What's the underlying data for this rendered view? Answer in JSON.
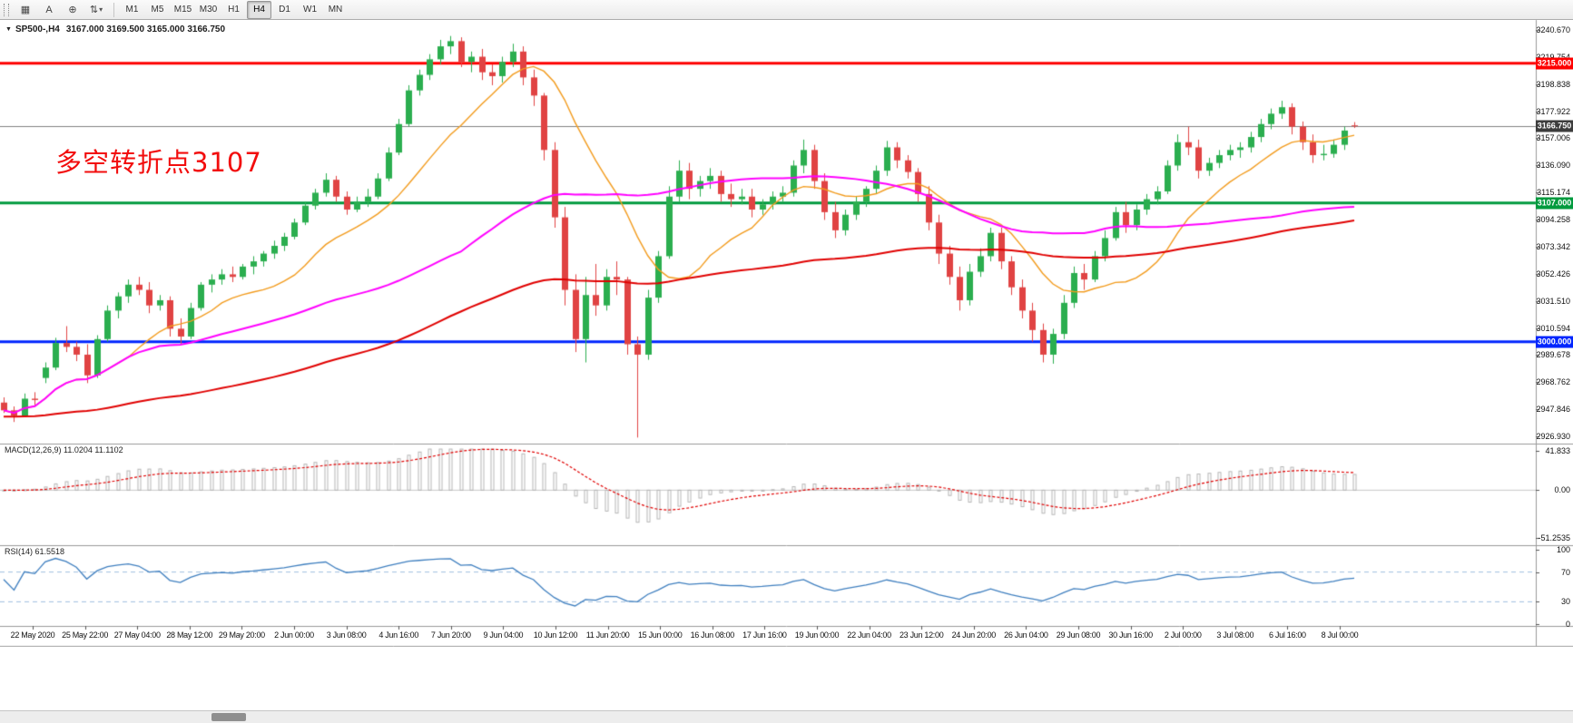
{
  "toolbar": {
    "tools": [
      {
        "name": "chart-mode",
        "glyph": "▦"
      },
      {
        "name": "text-tool",
        "glyph": "A"
      },
      {
        "name": "crosshair-tool",
        "glyph": "⊕"
      },
      {
        "name": "draw-tools",
        "glyph": "⇅",
        "caret": "▾"
      }
    ],
    "timeframes": [
      "M1",
      "M5",
      "M15",
      "M30",
      "H1",
      "H4",
      "D1",
      "W1",
      "MN"
    ],
    "active_timeframe": "H4"
  },
  "chart_header": {
    "collapse_icon": "▼",
    "symbol_period": "SP500-,H4",
    "ohlc_text": "3167.000 3169.500 3165.000 3166.750"
  },
  "annotation": {
    "text": "多空转折点3107",
    "color": "#f20d0d"
  },
  "chart_data": {
    "type": "candlestick",
    "symbol_timeframe": "SP500-,H4",
    "y_axis_labels": [
      "3240.670",
      "3219.754",
      "3198.838",
      "3177.922",
      "3157.006",
      "3136.090",
      "3115.174",
      "3094.258",
      "3073.342",
      "3052.426",
      "3031.510",
      "3010.594",
      "2989.678",
      "2968.762",
      "2947.846",
      "2926.930"
    ],
    "x_axis_labels": [
      "22 May 2020",
      "25 May 22:00",
      "27 May 04:00",
      "28 May 12:00",
      "29 May 20:00",
      "2 Jun 00:00",
      "3 Jun 08:00",
      "4 Jun 16:00",
      "7 Jun 20:00",
      "9 Jun 04:00",
      "10 Jun 12:00",
      "11 Jun 20:00",
      "15 Jun 00:00",
      "16 Jun 08:00",
      "17 Jun 16:00",
      "19 Jun 00:00",
      "22 Jun 04:00",
      "23 Jun 12:00",
      "24 Jun 20:00",
      "26 Jun 04:00",
      "29 Jun 08:00",
      "30 Jun 16:00",
      "2 Jul 00:00",
      "3 Jul 08:00",
      "6 Jul 16:00",
      "8 Jul 00:00"
    ],
    "levels": [
      {
        "price": 3215.0,
        "label": "3215.000",
        "color": "#fe0000"
      },
      {
        "price": 3107.0,
        "label": "3107.000",
        "color": "#009a3e"
      },
      {
        "price": 3000.0,
        "label": "3000.000",
        "color": "#0026fe"
      }
    ],
    "current_price": {
      "price": 3166.75,
      "label": "3166.750",
      "line_color": "#808080",
      "badge_color": "#3d3d3d"
    },
    "candle_up_color": "#2bae4f",
    "candle_down_color": "#e04343",
    "moving_averages": [
      {
        "type": "sma",
        "period": 13,
        "color": "#f29b1d"
      },
      {
        "type": "sma",
        "period": 45,
        "color": "#ff00ff"
      },
      {
        "type": "ema",
        "period": 110,
        "seed": 2942,
        "color": "#e00000"
      }
    ],
    "candles": [
      [
        2953,
        2957,
        2945,
        2947
      ],
      [
        2947,
        2950,
        2938,
        2943
      ],
      [
        2943,
        2960,
        2942,
        2956
      ],
      [
        2956,
        2961,
        2950,
        2955
      ],
      [
        2972,
        2984,
        2968,
        2980
      ],
      [
        2980,
        3003,
        2978,
        2999
      ],
      [
        2999,
        3012,
        2992,
        2996
      ],
      [
        2996,
        3000,
        2985,
        2990
      ],
      [
        2990,
        2998,
        2968,
        2974
      ],
      [
        2974,
        3005,
        2972,
        3002
      ],
      [
        3002,
        3028,
        3000,
        3024
      ],
      [
        3024,
        3038,
        3018,
        3035
      ],
      [
        3035,
        3048,
        3030,
        3044
      ],
      [
        3044,
        3050,
        3036,
        3040
      ],
      [
        3040,
        3046,
        3022,
        3028
      ],
      [
        3028,
        3036,
        3024,
        3032
      ],
      [
        3032,
        3035,
        3004,
        3010
      ],
      [
        3010,
        3018,
        2998,
        3004
      ],
      [
        3004,
        3030,
        3002,
        3026
      ],
      [
        3026,
        3046,
        3024,
        3044
      ],
      [
        3044,
        3052,
        3038,
        3048
      ],
      [
        3048,
        3056,
        3044,
        3052
      ],
      [
        3052,
        3058,
        3046,
        3050
      ],
      [
        3050,
        3060,
        3048,
        3058
      ],
      [
        3058,
        3066,
        3052,
        3062
      ],
      [
        3062,
        3070,
        3058,
        3068
      ],
      [
        3068,
        3078,
        3064,
        3074
      ],
      [
        3074,
        3084,
        3070,
        3081
      ],
      [
        3081,
        3095,
        3079,
        3092
      ],
      [
        3092,
        3108,
        3090,
        3105
      ],
      [
        3105,
        3118,
        3102,
        3115
      ],
      [
        3115,
        3130,
        3112,
        3125
      ],
      [
        3125,
        3128,
        3108,
        3112
      ],
      [
        3112,
        3116,
        3098,
        3102
      ],
      [
        3102,
        3112,
        3100,
        3108
      ],
      [
        3108,
        3118,
        3104,
        3112
      ],
      [
        3112,
        3130,
        3110,
        3126
      ],
      [
        3126,
        3150,
        3124,
        3146
      ],
      [
        3146,
        3172,
        3144,
        3168
      ],
      [
        3168,
        3198,
        3166,
        3194
      ],
      [
        3194,
        3210,
        3190,
        3206
      ],
      [
        3206,
        3222,
        3202,
        3218
      ],
      [
        3218,
        3233,
        3214,
        3228
      ],
      [
        3228,
        3236,
        3222,
        3232
      ],
      [
        3232,
        3235,
        3212,
        3216
      ],
      [
        3216,
        3224,
        3208,
        3220
      ],
      [
        3220,
        3226,
        3202,
        3208
      ],
      [
        3208,
        3214,
        3198,
        3205
      ],
      [
        3205,
        3220,
        3200,
        3216
      ],
      [
        3216,
        3230,
        3212,
        3224
      ],
      [
        3224,
        3228,
        3198,
        3204
      ],
      [
        3204,
        3210,
        3182,
        3190
      ],
      [
        3190,
        3192,
        3140,
        3148
      ],
      [
        3148,
        3154,
        3088,
        3096
      ],
      [
        3096,
        3104,
        3028,
        3040
      ],
      [
        3040,
        3052,
        2992,
        3002
      ],
      [
        3002,
        3050,
        2984,
        3036
      ],
      [
        3036,
        3060,
        3020,
        3028
      ],
      [
        3028,
        3056,
        3024,
        3050
      ],
      [
        3050,
        3062,
        3036,
        3048
      ],
      [
        3048,
        3050,
        2990,
        2998
      ],
      [
        2998,
        3004,
        2926,
        2990
      ],
      [
        2990,
        3040,
        2986,
        3034
      ],
      [
        3034,
        3070,
        3030,
        3066
      ],
      [
        3066,
        3120,
        3064,
        3112
      ],
      [
        3112,
        3140,
        3108,
        3132
      ],
      [
        3132,
        3138,
        3110,
        3118
      ],
      [
        3118,
        3128,
        3112,
        3124
      ],
      [
        3124,
        3134,
        3118,
        3128
      ],
      [
        3128,
        3132,
        3108,
        3114
      ],
      [
        3114,
        3122,
        3104,
        3110
      ],
      [
        3110,
        3118,
        3106,
        3112
      ],
      [
        3112,
        3118,
        3096,
        3102
      ],
      [
        3102,
        3110,
        3098,
        3106
      ],
      [
        3106,
        3116,
        3102,
        3112
      ],
      [
        3112,
        3120,
        3108,
        3115
      ],
      [
        3115,
        3140,
        3112,
        3136
      ],
      [
        3136,
        3156,
        3130,
        3148
      ],
      [
        3148,
        3152,
        3118,
        3124
      ],
      [
        3124,
        3130,
        3094,
        3100
      ],
      [
        3100,
        3108,
        3080,
        3086
      ],
      [
        3086,
        3102,
        3082,
        3098
      ],
      [
        3098,
        3112,
        3094,
        3108
      ],
      [
        3108,
        3120,
        3104,
        3118
      ],
      [
        3118,
        3136,
        3114,
        3132
      ],
      [
        3132,
        3155,
        3128,
        3150
      ],
      [
        3150,
        3154,
        3134,
        3140
      ],
      [
        3140,
        3144,
        3126,
        3131
      ],
      [
        3131,
        3134,
        3108,
        3114
      ],
      [
        3114,
        3120,
        3086,
        3092
      ],
      [
        3092,
        3098,
        3060,
        3068
      ],
      [
        3068,
        3074,
        3044,
        3050
      ],
      [
        3050,
        3058,
        3024,
        3032
      ],
      [
        3032,
        3060,
        3028,
        3054
      ],
      [
        3054,
        3072,
        3050,
        3066
      ],
      [
        3066,
        3088,
        3062,
        3084
      ],
      [
        3084,
        3088,
        3056,
        3062
      ],
      [
        3062,
        3066,
        3036,
        3042
      ],
      [
        3042,
        3048,
        3018,
        3024
      ],
      [
        3024,
        3030,
        3000,
        3009
      ],
      [
        3009,
        3014,
        2984,
        2990
      ],
      [
        2990,
        3010,
        2983,
        3006
      ],
      [
        3006,
        3036,
        3002,
        3030
      ],
      [
        3030,
        3058,
        3026,
        3053
      ],
      [
        3053,
        3060,
        3040,
        3048
      ],
      [
        3048,
        3070,
        3046,
        3066
      ],
      [
        3066,
        3086,
        3062,
        3080
      ],
      [
        3080,
        3104,
        3078,
        3100
      ],
      [
        3100,
        3108,
        3084,
        3090
      ],
      [
        3090,
        3106,
        3086,
        3102
      ],
      [
        3102,
        3114,
        3098,
        3110
      ],
      [
        3110,
        3120,
        3106,
        3116
      ],
      [
        3116,
        3140,
        3114,
        3136
      ],
      [
        3136,
        3160,
        3132,
        3154
      ],
      [
        3154,
        3166,
        3144,
        3150
      ],
      [
        3150,
        3156,
        3126,
        3132
      ],
      [
        3132,
        3142,
        3128,
        3138
      ],
      [
        3138,
        3148,
        3134,
        3144
      ],
      [
        3144,
        3152,
        3140,
        3148
      ],
      [
        3148,
        3154,
        3142,
        3150
      ],
      [
        3150,
        3162,
        3146,
        3158
      ],
      [
        3158,
        3172,
        3154,
        3168
      ],
      [
        3168,
        3180,
        3164,
        3176
      ],
      [
        3176,
        3186,
        3172,
        3181
      ],
      [
        3181,
        3184,
        3160,
        3166
      ],
      [
        3166,
        3170,
        3148,
        3154
      ],
      [
        3154,
        3160,
        3138,
        3144
      ],
      [
        3144,
        3152,
        3140,
        3145
      ],
      [
        3145,
        3156,
        3142,
        3152
      ],
      [
        3152,
        3166,
        3148,
        3163
      ],
      [
        3167,
        3169.5,
        3165,
        3166.75
      ]
    ]
  },
  "macd_panel": {
    "label": "MACD(12,26,9) 11.0204 11.1102",
    "fast": 12,
    "slow": 26,
    "signal": 9,
    "y_axis_labels": [
      "41.833",
      "0.00",
      "-51.2535"
    ],
    "histogram_color": "#b6b6b6",
    "signal_color": "#e00000"
  },
  "rsi_panel": {
    "label": "RSI(14) 61.5518",
    "period": 14,
    "levels": [
      70,
      30
    ],
    "y_axis_labels": [
      "100",
      "70",
      "30",
      "0"
    ],
    "line_color": "#3f7fbf",
    "level_line_color": "#9fbfdf"
  }
}
